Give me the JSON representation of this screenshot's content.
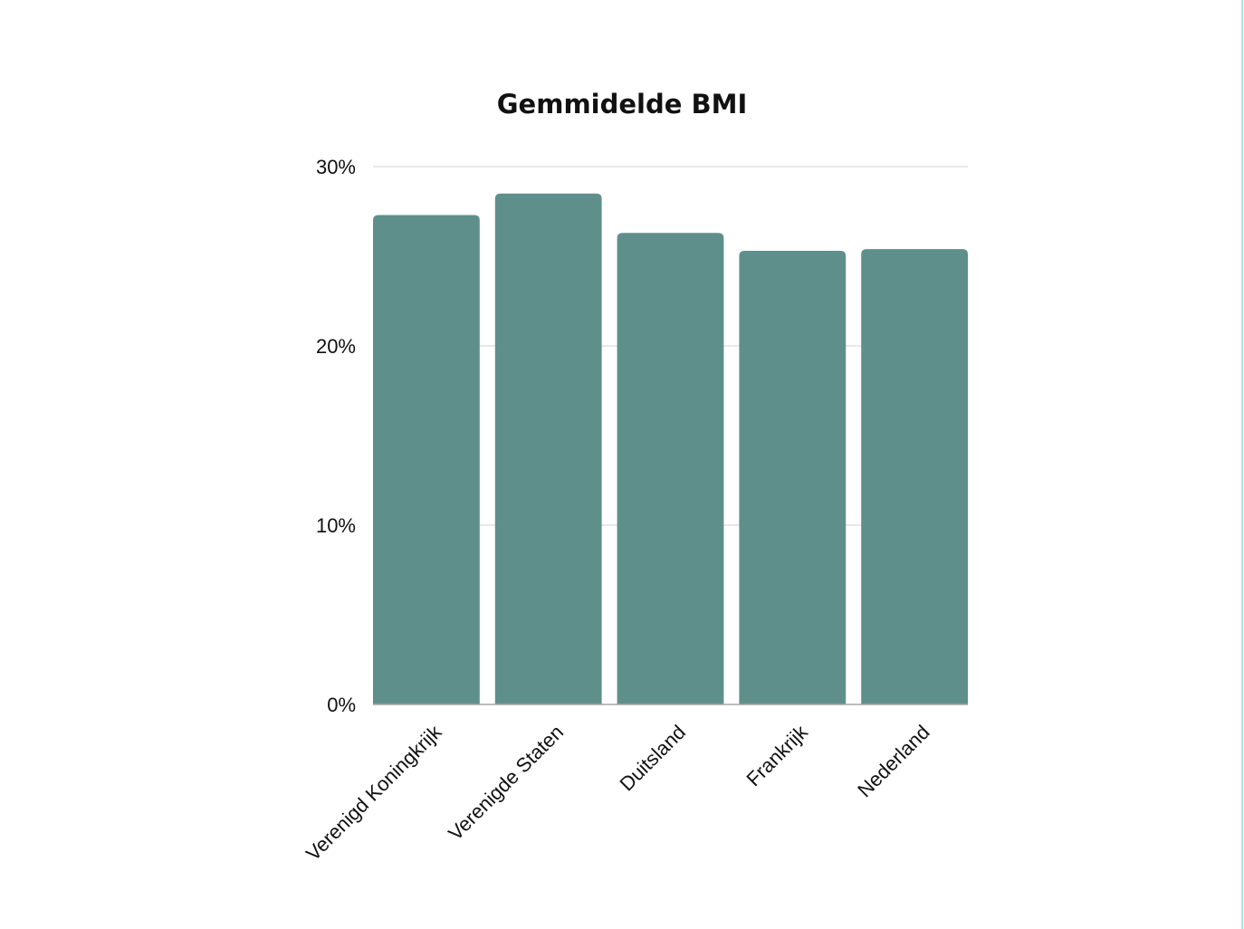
{
  "chart_data": {
    "type": "bar",
    "title": "Gemmidelde BMI",
    "xlabel": "",
    "ylabel": "",
    "categories": [
      "Verenigd Koningkrijk",
      "Verenigde Staten",
      "Duitsland",
      "Frankrijk",
      "Nederland"
    ],
    "values": [
      27.3,
      28.5,
      26.3,
      25.3,
      25.4
    ],
    "ylim": [
      0,
      30
    ],
    "yticks": [
      0,
      10,
      20,
      30
    ],
    "ytick_labels": [
      "0%",
      "10%",
      "20%",
      "30%"
    ],
    "grid": true,
    "legend": "none",
    "colors": {
      "bar": "#5f8f8b",
      "grid": "#d9d9d9",
      "axis": "#a6a6a6"
    }
  }
}
